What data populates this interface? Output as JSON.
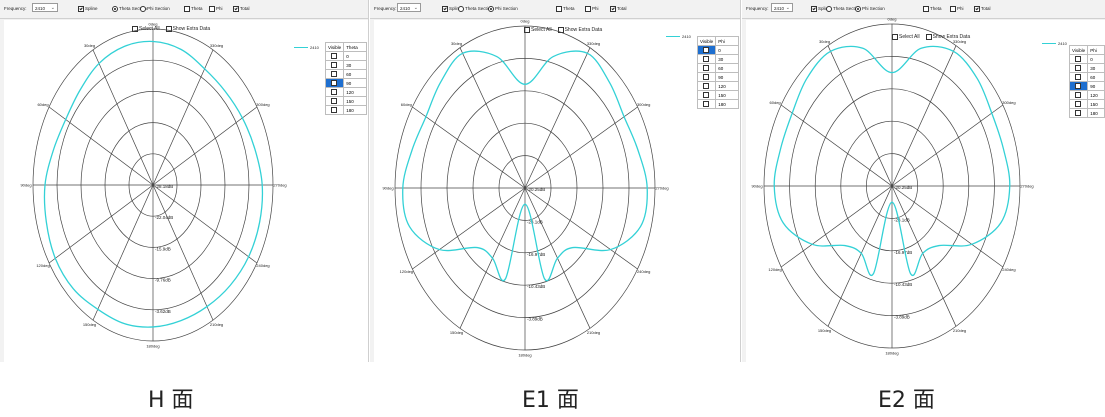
{
  "panels": [
    {
      "toolbar": {
        "frequency_label": "Frequency:",
        "frequency_value": "2410",
        "spline_label": "Spline",
        "theta_section_label": "Theta Section",
        "phi_section_label": "Phi Section",
        "theta_label": "Theta",
        "phi_label": "Phi",
        "total_label": "Total",
        "spline_checked": true,
        "section": "theta",
        "theta_checked": false,
        "phi_checked": false,
        "total_checked": true
      },
      "options": {
        "select_all_label": "Select All",
        "show_extra_label": "Show Extra Data"
      },
      "legend": {
        "label": "2410",
        "color": "#33d1d6"
      },
      "visible_table": {
        "col1": "Visible",
        "col2": "Theta",
        "rows": [
          "0",
          "30",
          "60",
          "90",
          "120",
          "150",
          "180"
        ],
        "selected_index": 3
      },
      "polar": {
        "angle_labels": [
          "0deg",
          "30deg",
          "60deg",
          "90deg",
          "120deg",
          "150deg",
          "180deg",
          "210deg",
          "240deg",
          "270deg",
          "300deg",
          "330deg"
        ],
        "radial_labels": [
          "-28.18dB",
          "-22.04dB",
          "-15.9dB",
          "-9.76dB",
          "-3.62dB"
        ],
        "pattern": [
          4.6,
          4.6,
          4.5,
          4.3,
          4.2,
          4.3,
          4.5,
          4.6,
          4.7,
          4.7,
          4.6,
          4.6,
          4.55,
          4.5,
          4.5,
          4.55,
          4.6,
          4.6,
          4.55,
          4.4,
          4.3,
          4.25,
          4.3,
          4.5,
          4.6
        ]
      },
      "caption": "H 面"
    },
    {
      "toolbar": {
        "frequency_label": "Frequency:",
        "frequency_value": "2410",
        "spline_label": "Spline",
        "theta_section_label": "Theta Section",
        "phi_section_label": "Phi Section",
        "theta_label": "Theta",
        "phi_label": "Phi",
        "total_label": "Total",
        "spline_checked": true,
        "section": "phi",
        "theta_checked": false,
        "phi_checked": false,
        "total_checked": true
      },
      "options": {
        "select_all_label": "Select All",
        "show_extra_label": "Show Extra Data"
      },
      "legend": {
        "label": "2410",
        "color": "#33d1d6"
      },
      "visible_table": {
        "col1": "Visible",
        "col2": "Phi",
        "rows": [
          "0",
          "30",
          "60",
          "90",
          "120",
          "150",
          "180"
        ],
        "selected_index": 0
      },
      "polar": {
        "angle_labels": [
          "0deg",
          "30deg",
          "60deg",
          "90deg",
          "120deg",
          "150deg",
          "180deg",
          "210deg",
          "240deg",
          "270deg",
          "300deg",
          "330deg"
        ],
        "radial_labels": [
          "-20.25dB",
          "-23.1dB",
          "-16.97dB",
          "-10.43dB",
          "-3.89dB"
        ],
        "pattern": [
          3.2,
          4.2,
          4.8,
          4.6,
          4.4,
          4.5,
          4.7,
          4.6,
          3.8,
          2.6,
          2.5,
          2.9,
          0.5,
          2.9,
          2.5,
          2.6,
          3.8,
          4.6,
          4.7,
          4.5,
          4.4,
          4.6,
          4.8,
          4.2,
          3.2
        ]
      },
      "caption": "E1 面"
    },
    {
      "toolbar": {
        "frequency_label": "Frequency:",
        "frequency_value": "2410",
        "spline_label": "Spline",
        "theta_section_label": "Theta Section",
        "phi_section_label": "Phi Section",
        "theta_label": "Theta",
        "phi_label": "Phi",
        "total_label": "Total",
        "spline_checked": true,
        "section": "phi",
        "theta_checked": false,
        "phi_checked": false,
        "total_checked": true
      },
      "options": {
        "select_all_label": "Select All",
        "show_extra_label": "Show Extra Data"
      },
      "legend": {
        "label": "2410",
        "color": "#33d1d6"
      },
      "visible_table": {
        "col1": "Visible",
        "col2": "Phi",
        "rows": [
          "0",
          "30",
          "60",
          "90",
          "120",
          "150",
          "180"
        ],
        "selected_index": 3
      },
      "polar": {
        "angle_labels": [
          "0deg",
          "30deg",
          "60deg",
          "90deg",
          "120deg",
          "150deg",
          "180deg",
          "210deg",
          "240deg",
          "270deg",
          "300deg",
          "330deg"
        ],
        "radial_labels": [
          "-20.25dB",
          "-23.1dB",
          "-16.97dB",
          "-10.43dB",
          "-3.89dB"
        ],
        "pattern": [
          3.5,
          4.4,
          4.8,
          4.7,
          4.5,
          4.5,
          4.6,
          4.4,
          3.6,
          2.6,
          2.4,
          2.8,
          0.5,
          2.8,
          2.4,
          2.6,
          3.6,
          4.4,
          4.6,
          4.5,
          4.5,
          4.7,
          4.8,
          4.4,
          3.5
        ]
      },
      "caption": "E2 面"
    }
  ]
}
